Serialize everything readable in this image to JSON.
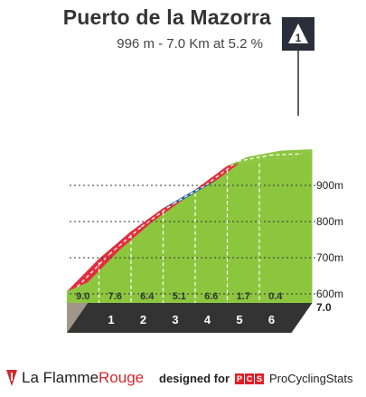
{
  "header": {
    "title": "Puerto de la Mazorra",
    "subtitle": "996 m - 7.0 Km at 5.2 %"
  },
  "category_badge": {
    "value": "1",
    "icon": "triangle-summit-icon"
  },
  "footer": {
    "brand_left_a": "La Flamme",
    "brand_left_b": "Rouge",
    "designed_for": "designed for",
    "pcs_letters": [
      "P",
      "C",
      "S"
    ],
    "brand_right": "ProCyclingStats"
  },
  "colors": {
    "green": "#8cc63f",
    "red": "#e32e3e",
    "blue": "#1e5aa0",
    "base": "#333333",
    "grey": "#a0978b",
    "badge": "#2a2f3b"
  },
  "chart_data": {
    "type": "area",
    "title": "Puerto de la Mazorra",
    "subtitle": "996 m - 7.0 Km at 5.2 %",
    "x_unit": "km",
    "y_unit": "m",
    "distance_total": 7.0,
    "distance_total_label": "7.0",
    "start_altitude": 632,
    "summit_altitude": 996,
    "km_markers": [
      1,
      2,
      3,
      4,
      5,
      6
    ],
    "segments": [
      {
        "from": 0,
        "to": 1,
        "gradient": 9.0,
        "label": "9.0",
        "color": "red"
      },
      {
        "from": 1,
        "to": 2,
        "gradient": 7.6,
        "label": "7.6",
        "color": "red"
      },
      {
        "from": 2,
        "to": 3,
        "gradient": 6.4,
        "label": "6.4",
        "color": "red"
      },
      {
        "from": 3,
        "to": 4,
        "gradient": 5.1,
        "label": "5.1",
        "color": "blue"
      },
      {
        "from": 4,
        "to": 5,
        "gradient": 6.6,
        "label": "6.6",
        "color": "red"
      },
      {
        "from": 5,
        "to": 6,
        "gradient": 1.7,
        "label": "1.7",
        "color": "green"
      },
      {
        "from": 6,
        "to": 7,
        "gradient": 0.4,
        "label": "0.4",
        "color": "green"
      }
    ],
    "y_ticks": [
      {
        "value": 600,
        "label": "600m"
      },
      {
        "value": 700,
        "label": "700m"
      },
      {
        "value": 800,
        "label": "800m"
      },
      {
        "value": 900,
        "label": "900m"
      }
    ],
    "grid": true
  }
}
